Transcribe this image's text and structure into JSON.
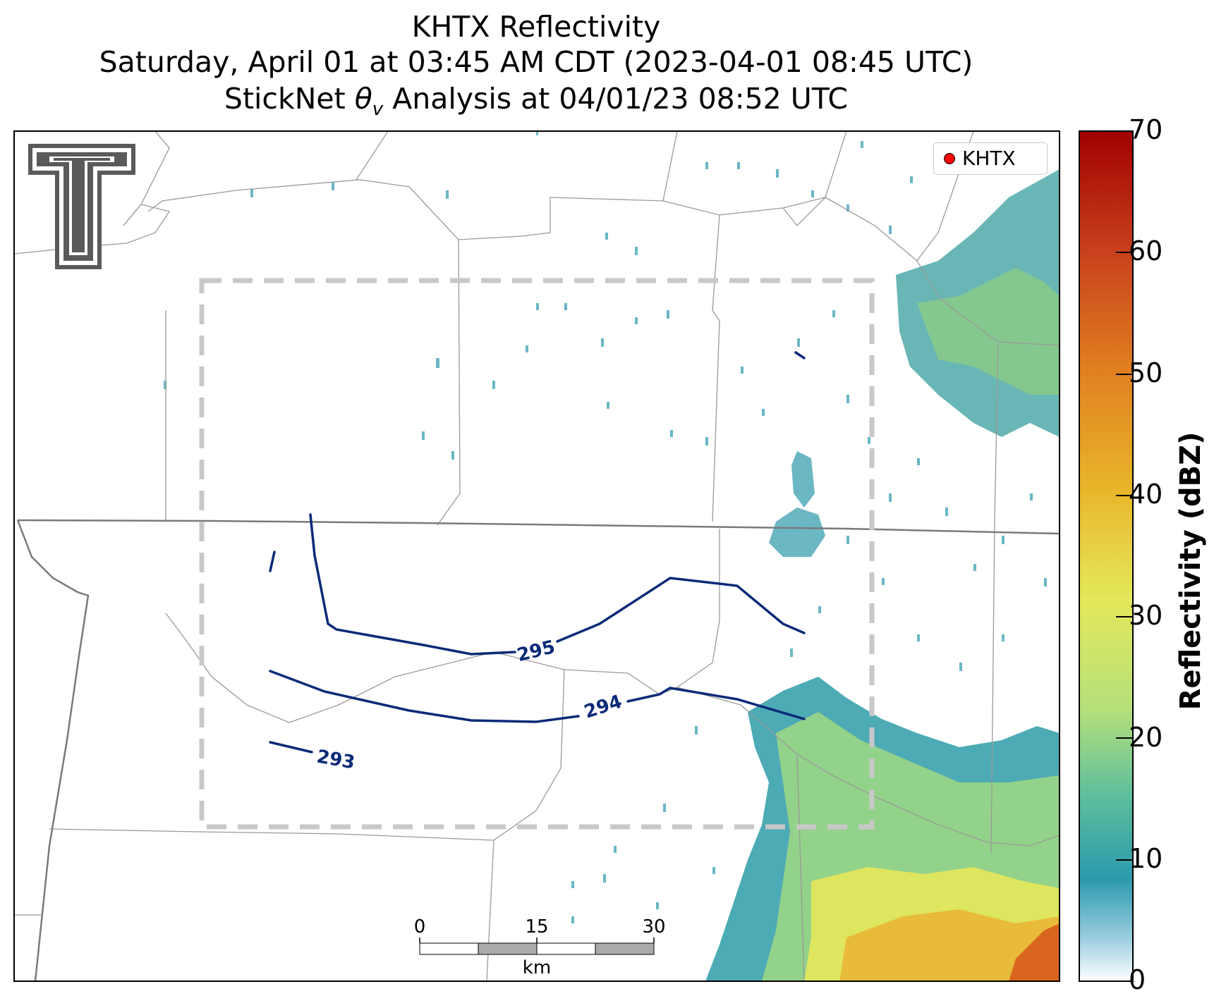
{
  "title": {
    "line1": "KHTX Reflectivity",
    "line2": "Saturday, April 01 at 03:45 AM CDT (2023-04-01 08:45 UTC)",
    "line3_prefix": "StickNet ",
    "line3_symbol": "θ",
    "line3_subscript": "v",
    "line3_suffix": " Analysis at 04/01/23 08:52 UTC"
  },
  "legend": {
    "label": "KHTX",
    "marker_color": "#ff0000"
  },
  "colorbar": {
    "label": "Reflectivity (dBZ)",
    "min": 0,
    "max": 70,
    "ticks": [
      "0",
      "10",
      "20",
      "30",
      "40",
      "50",
      "60",
      "70"
    ],
    "colors": [
      "#ffffff",
      "#9ccde0",
      "#2b9aad",
      "#5fbf9c",
      "#b5e07a",
      "#e4e85a",
      "#e9b52a",
      "#e07f20",
      "#c8401c",
      "#a00000"
    ]
  },
  "contours": {
    "color": "#0b2a78",
    "levels": [
      {
        "value": 293,
        "label": "293"
      },
      {
        "value": 294,
        "label": "294"
      },
      {
        "value": 295,
        "label": "295"
      }
    ]
  },
  "scale_bar": {
    "ticks": [
      "0",
      "15",
      "30"
    ],
    "unit": "km"
  },
  "logo": {
    "name": "Texas Tech double-T logo",
    "color": "#5a5a5a"
  }
}
